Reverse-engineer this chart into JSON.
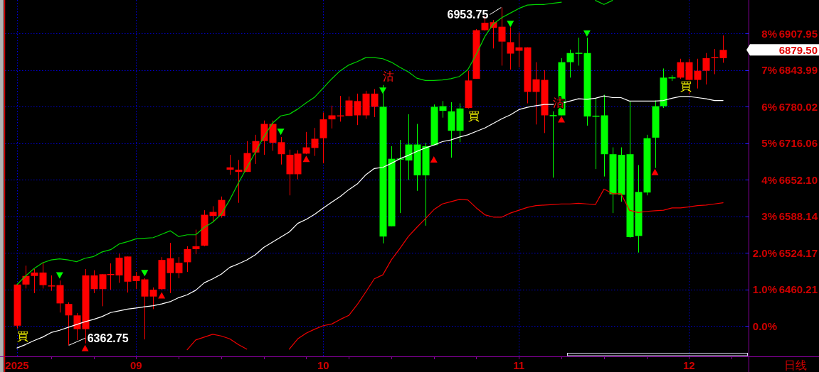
{
  "chart_data": {
    "type": "candlestick",
    "xlabel": "日线",
    "categories": [
      "2025",
      null,
      null,
      null,
      null,
      null,
      null,
      null,
      null,
      null,
      null,
      null,
      null,
      null,
      "09",
      null,
      null,
      null,
      null,
      null,
      null,
      null,
      null,
      null,
      null,
      null,
      null,
      null,
      null,
      null,
      null,
      null,
      null,
      null,
      null,
      null,
      "10",
      null,
      null,
      null,
      null,
      null,
      null,
      null,
      null,
      null,
      null,
      null,
      null,
      null,
      null,
      null,
      null,
      null,
      null,
      null,
      null,
      null,
      null,
      "11",
      null,
      null,
      null,
      null,
      null,
      null,
      null,
      null,
      null,
      null,
      null,
      null,
      null,
      null,
      null,
      null,
      null,
      null,
      null,
      "12",
      null,
      null,
      null,
      null
    ],
    "ohlc": [
      [
        6397,
        6469,
        6392,
        6469
      ],
      [
        6469,
        6502,
        6462,
        6484
      ],
      [
        6484,
        6496,
        6454,
        6490
      ],
      [
        6468,
        6508,
        6462,
        6490
      ],
      [
        6466,
        6485,
        6458,
        6467
      ],
      [
        6436,
        6476,
        6420,
        6468
      ],
      [
        6415,
        6438,
        6362.75,
        6435
      ],
      [
        6391,
        6419,
        6372,
        6415
      ],
      [
        6391,
        6496,
        6366,
        6485
      ],
      [
        6461,
        6494,
        6454,
        6485
      ],
      [
        6461,
        6487,
        6431,
        6487
      ],
      [
        6486,
        6506,
        6460,
        6487
      ],
      [
        6485,
        6523,
        6472,
        6516
      ],
      [
        6474,
        6518,
        6455,
        6518
      ],
      [
        6475,
        6491,
        6461,
        6484
      ],
      [
        6448,
        6480,
        6373,
        6478
      ],
      [
        6448,
        6464,
        6426,
        6460
      ],
      [
        6461,
        6517,
        6460,
        6512
      ],
      [
        6489,
        6542,
        6454,
        6515
      ],
      [
        6489,
        6517,
        6480,
        6507
      ],
      [
        6508,
        6536,
        6491,
        6531
      ],
      [
        6531,
        6565,
        6522,
        6536
      ],
      [
        6537,
        6599,
        6536,
        6591
      ],
      [
        6589,
        6606,
        6578,
        6596
      ],
      [
        6589,
        6623,
        6586,
        6617
      ],
      [
        6670,
        6696,
        6661,
        6674
      ],
      [
        6666,
        6687,
        6612,
        6670
      ],
      [
        6666,
        6720,
        6666,
        6699
      ],
      [
        6700,
        6731,
        6680,
        6720
      ],
      [
        6720,
        6756,
        6696,
        6750
      ],
      [
        6717,
        6756,
        6703,
        6750
      ],
      [
        6697,
        6727,
        6679,
        6718
      ],
      [
        6662,
        6705,
        6625,
        6696
      ],
      [
        6662,
        6704,
        6653,
        6698
      ],
      [
        6698,
        6736,
        6697,
        6709
      ],
      [
        6708,
        6743,
        6694,
        6724
      ],
      [
        6725,
        6770,
        6681,
        6758
      ],
      [
        6758,
        6782,
        6742,
        6765
      ],
      [
        6764,
        6799,
        6754,
        6764
      ],
      [
        6764,
        6798,
        6764,
        6791
      ],
      [
        6765,
        6803,
        6748,
        6790
      ],
      [
        6765,
        6808,
        6759,
        6803
      ],
      [
        6780,
        6811,
        6762,
        6803
      ],
      [
        6780,
        6818,
        6541,
        6553
      ],
      [
        6689,
        6711,
        6571,
        6571
      ],
      [
        6689,
        6722,
        6594,
        6688
      ],
      [
        6714,
        6767,
        6652,
        6686
      ],
      [
        6714,
        6750,
        6633,
        6660
      ],
      [
        6711,
        6717,
        6572,
        6660
      ],
      [
        6780,
        6784,
        6713,
        6713
      ],
      [
        6781,
        6790,
        6761,
        6773
      ],
      [
        6772,
        6788,
        6691,
        6738
      ],
      [
        6777,
        6786,
        6718,
        6738
      ],
      [
        6778,
        6843,
        6777,
        6826
      ],
      [
        6829,
        6916,
        6829,
        6914
      ],
      [
        6914,
        6939,
        6913,
        6927
      ],
      [
        6918,
        6932,
        6882,
        6928
      ],
      [
        6894,
        6953.75,
        6852,
        6920
      ],
      [
        6873,
        6919,
        6845,
        6893
      ],
      [
        6878,
        6910,
        6849,
        6884
      ],
      [
        6806,
        6884,
        6786,
        6884
      ],
      [
        6806,
        6858,
        6749,
        6828
      ],
      [
        6765,
        6844,
        6734,
        6827
      ],
      [
        6765,
        6772,
        6656,
        6764
      ],
      [
        6858,
        6865,
        6765,
        6765
      ],
      [
        6874,
        6880,
        6831,
        6858
      ],
      [
        6874,
        6901,
        6852,
        6873
      ],
      [
        6874,
        6901,
        6747,
        6763
      ],
      [
        6764,
        6796,
        6671,
        6763
      ],
      [
        6765,
        6801,
        6658,
        6697
      ],
      [
        6697,
        6709,
        6594,
        6627
      ],
      [
        6696,
        6709,
        6614,
        6626
      ],
      [
        6697,
        6790,
        6551,
        6552
      ],
      [
        6631,
        6678,
        6525,
        6554
      ],
      [
        6725,
        6731,
        6625,
        6630
      ],
      [
        6781,
        6791,
        6673,
        6726
      ],
      [
        6831,
        6847,
        6778,
        6781
      ],
      [
        6831,
        6835,
        6825,
        6830
      ],
      [
        6831,
        6864,
        6829,
        6858
      ],
      [
        6827,
        6864,
        6802,
        6858
      ],
      [
        6827,
        6864,
        6812,
        6843
      ],
      [
        6843,
        6874,
        6819,
        6865
      ],
      [
        6866,
        6881,
        6837,
        6866
      ],
      [
        6865,
        6905,
        6857,
        6879.5
      ]
    ],
    "value_labels": [
      "買",
      null,
      null,
      null,
      null,
      null,
      "6362.75",
      null,
      null,
      null,
      null,
      null,
      null,
      null,
      null,
      null,
      null,
      null,
      null,
      null,
      null,
      null,
      null,
      null,
      null,
      null,
      null,
      null,
      null,
      null,
      null,
      null,
      null,
      null,
      null,
      null,
      null,
      null,
      null,
      null,
      null,
      null,
      null,
      "沽",
      null,
      null,
      null,
      null,
      null,
      null,
      null,
      null,
      null,
      "買",
      null,
      null,
      null,
      "6953.75",
      null,
      null,
      null,
      null,
      null,
      "沽",
      null,
      null,
      null,
      null,
      null,
      null,
      null,
      null,
      null,
      null,
      null,
      null,
      null,
      null,
      "買",
      null,
      null,
      null,
      null,
      "6879.50"
    ],
    "colors": [
      "#ff0000",
      "#ff0000",
      "#ff0000",
      "#ff0000",
      "#ff0000",
      "#ff0000",
      "#ff0000",
      "#ff0000",
      "#ff0000",
      "#ff0000",
      "#ff0000",
      "#ff0000",
      "#ff0000",
      "#ff0000",
      "#ff0000",
      "#ff0000",
      "#ff0000",
      "#ff0000",
      "#ff0000",
      "#ff0000",
      "#ff0000",
      "#ff0000",
      "#ff0000",
      "#ff0000",
      "#ff0000",
      "#ff0000",
      "#ff0000",
      "#ff0000",
      "#ff0000",
      "#ff0000",
      "#ff0000",
      "#ff0000",
      "#ff0000",
      "#ff0000",
      "#ff0000",
      "#ff0000",
      "#ff0000",
      "#ff0000",
      "#ff0000",
      "#ff0000",
      "#ff0000",
      "#ff0000",
      "#ff0000",
      "#00ff00",
      "#00ff00",
      "#00ff00",
      "#00ff00",
      "#00ff00",
      "#00ff00",
      "#00ff00",
      "#00ff00",
      "#00ff00",
      "#00ff00",
      "#ff0000",
      "#ff0000",
      "#ff0000",
      "#ff0000",
      "#ff0000",
      "#ff0000",
      "#ff0000",
      "#ff0000",
      "#ff0000",
      "#ff0000",
      "#00ff00",
      "#00ff00",
      "#00ff00",
      "#00ff00",
      "#00ff00",
      "#00ff00",
      "#00ff00",
      "#00ff00",
      "#00ff00",
      "#00ff00",
      "#00ff00",
      "#00ff00",
      "#00ff00",
      "#00ff00",
      "#00ff00",
      "#ff0000",
      "#ff0000",
      "#ff0000",
      "#ff0000",
      "#ff0000",
      "#ff0000"
    ],
    "series": [
      {
        "type": "line",
        "color": "#00d400",
        "values": [
          6469,
          6484,
          6497,
          6507,
          6512,
          6514,
          6512,
          6509,
          6515,
          6518,
          6526,
          6530,
          6540,
          6544,
          6549,
          6550,
          6551,
          6557,
          6563,
          6553,
          6556,
          6556,
          6569,
          6578,
          6592,
          6617,
          6646,
          6673,
          6700,
          6727,
          6751,
          6764,
          6767,
          6776,
          6787,
          6797,
          6813,
          6829,
          6843,
          6853,
          6859,
          6866,
          6866,
          6864,
          6858,
          6849,
          6841,
          6830,
          6826,
          6826,
          6827,
          6829,
          6833,
          6845,
          6872,
          6903,
          6925,
          6936,
          6944,
          6952,
          6958,
          6959,
          6959,
          6961,
          6963,
          null,
          null,
          null,
          6966,
          6959,
          6966,
          null,
          null,
          null,
          null,
          null,
          null,
          null,
          null,
          null,
          null,
          null,
          null,
          null
        ]
      },
      {
        "type": "line",
        "color": "#ffffff",
        "values": [
          6358,
          6364,
          6371,
          6377,
          6385,
          6389,
          6394,
          6399,
          6404,
          6408,
          6413,
          6420,
          6423,
          6426,
          6428,
          6430,
          6432,
          6435,
          6439,
          6446,
          6451,
          6459,
          6472,
          6479,
          6487,
          6499,
          6505,
          6512,
          6521,
          6534,
          6543,
          6552,
          6561,
          6576,
          6583,
          6592,
          6603,
          6613,
          6623,
          6635,
          6645,
          6661,
          6672,
          6674,
          6681,
          6689,
          6695,
          6702,
          6708,
          6713,
          6719,
          6722,
          6727,
          6731,
          6737,
          6743,
          6751,
          6759,
          6766,
          6775,
          6779,
          6782,
          6784,
          6784,
          6786,
          6790,
          6794,
          6793,
          6795,
          6799,
          6796,
          6796,
          6790,
          6790,
          6790,
          6790,
          6791,
          6795,
          6798,
          6798,
          6796,
          6794,
          6791,
          6791
        ]
      },
      {
        "type": "line",
        "color": "#f00000",
        "values": [
          null,
          null,
          null,
          null,
          null,
          null,
          null,
          null,
          null,
          null,
          null,
          null,
          null,
          null,
          null,
          null,
          null,
          null,
          null,
          null,
          6355,
          6372,
          6377,
          6382,
          6379,
          6374,
          6364,
          6356,
          null,
          null,
          null,
          null,
          6356,
          6374,
          6384,
          6391,
          6397,
          6400,
          6408,
          6415,
          6434,
          6456,
          6479,
          6486,
          6512,
          6532,
          6553,
          6569,
          6584,
          6600,
          6610,
          6614,
          6618,
          6617,
          6603,
          6591,
          6587,
          6587,
          6594,
          6599,
          6604,
          6607,
          6608,
          6609,
          6610,
          6610,
          6611,
          6610,
          6609,
          6636,
          6628,
          6628,
          6599,
          6595,
          6597,
          6598,
          6599,
          6603,
          6603,
          6605,
          6607,
          6608,
          6610,
          6612
        ]
      },
      {
        "type": "scatter",
        "marker": "triangle",
        "color": "#00ff00",
        "values": [
          null,
          null,
          null,
          null,
          null,
          6485,
          null,
          null,
          null,
          null,
          null,
          null,
          null,
          null,
          null,
          6489,
          null,
          null,
          null,
          null,
          null,
          null,
          null,
          null,
          null,
          null,
          null,
          null,
          null,
          null,
          null,
          6736,
          null,
          null,
          null,
          null,
          null,
          null,
          null,
          null,
          null,
          null,
          null,
          6808,
          null,
          null,
          null,
          null,
          null,
          null,
          null,
          null,
          null,
          null,
          null,
          null,
          null,
          null,
          6925,
          null,
          null,
          null,
          null,
          null,
          null,
          null,
          null,
          6908,
          null,
          null,
          null,
          null,
          null,
          null,
          null,
          null,
          null,
          null,
          null,
          null,
          null,
          null,
          null,
          null
        ]
      },
      {
        "type": "scatter",
        "marker": "triangle",
        "color": "#ff0000",
        "values": [
          null,
          null,
          null,
          null,
          null,
          null,
          null,
          null,
          6358,
          null,
          null,
          null,
          null,
          null,
          null,
          null,
          null,
          6450,
          null,
          null,
          null,
          null,
          null,
          null,
          null,
          null,
          null,
          null,
          null,
          null,
          null,
          null,
          null,
          null,
          6689,
          null,
          null,
          null,
          null,
          null,
          null,
          null,
          null,
          null,
          null,
          null,
          null,
          null,
          null,
          6688,
          null,
          null,
          null,
          null,
          null,
          null,
          null,
          null,
          null,
          null,
          null,
          null,
          null,
          null,
          6758,
          null,
          null,
          null,
          null,
          null,
          null,
          null,
          null,
          null,
          null,
          6666,
          null,
          null,
          null,
          null,
          null,
          null,
          null,
          null
        ]
      }
    ],
    "ylim": [
      6343.3,
      6966.8
    ],
    "yticks": [
      6460.21,
      6524.17,
      6588.14,
      {
        "value": 6652.1,
        "label": "6652.10"
      },
      6716.06,
      6780.02,
      6843.99,
      6907.95
    ],
    "y2lim": [
      -0.83,
      8.92
    ],
    "y2ticks": [
      {
        "value": 0,
        "label": "0.0%"
      },
      {
        "value": 1,
        "label": "1.0%"
      },
      {
        "value": 2,
        "label": "2.0%"
      },
      {
        "value": 3,
        "label": "3%"
      },
      {
        "value": 4,
        "label": "4%"
      },
      {
        "value": 5,
        "label": "5%"
      },
      {
        "value": 6,
        "label": "6%"
      },
      {
        "value": 7,
        "label": "7%"
      },
      {
        "value": 8,
        "label": "8%"
      }
    ],
    "grid": true
  }
}
